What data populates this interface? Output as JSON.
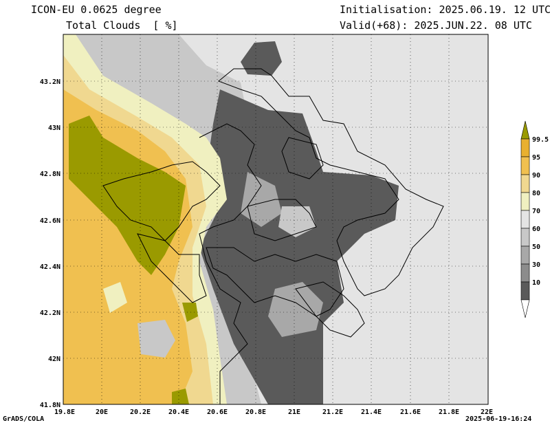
{
  "header": {
    "model": "ICON-EU 0.0625 degree",
    "variable": "Total Clouds  [ %]",
    "init": "Initialisation: 2025.06.19. 12 UTC",
    "valid": "Valid(+68): 2025.JUN.22. 08 UTC"
  },
  "footer": {
    "credit": "GrADS/COLA",
    "timestamp": "2025-06-19-16:24"
  },
  "map": {
    "lat_labels": [
      "41.8N",
      "42N",
      "42.2N",
      "42.4N",
      "42.6N",
      "42.8N",
      "43N",
      "43.2N"
    ],
    "lon_labels": [
      "19.8E",
      "20E",
      "20.2E",
      "20.4E",
      "20.6E",
      "20.8E",
      "21E",
      "21.2E",
      "21.4E",
      "21.6E",
      "21.8E",
      "22E"
    ]
  },
  "colorbar": {
    "labels": [
      "99.5",
      "95",
      "90",
      "80",
      "70",
      "60",
      "50",
      "30",
      "10"
    ],
    "colors": [
      "#9a9a00",
      "#e8b030",
      "#f0c050",
      "#f0d890",
      "#f0f0c0",
      "#e4e4e4",
      "#c8c8c8",
      "#a8a8a8",
      "#8c8c8c",
      "#5a5a5a",
      "#ffffff"
    ]
  }
}
